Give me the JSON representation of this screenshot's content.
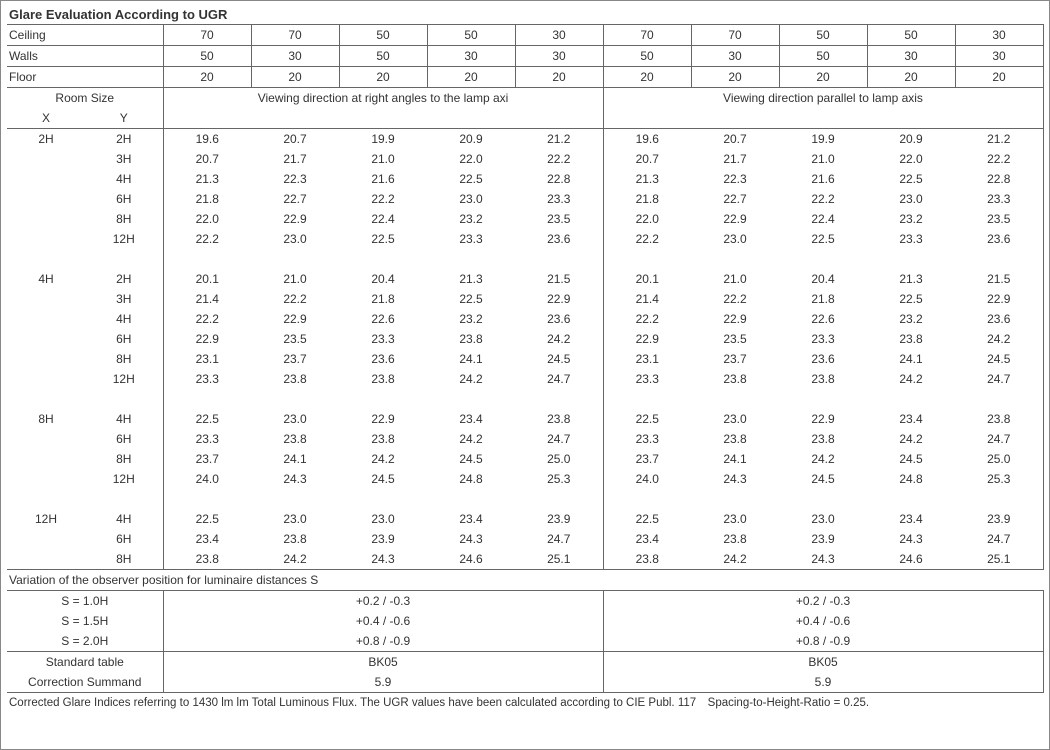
{
  "title": "Glare Evaluation According to UGR",
  "reflectance_rows": [
    {
      "label": "Ceiling",
      "vals": [
        "70",
        "70",
        "50",
        "50",
        "30",
        "70",
        "70",
        "50",
        "50",
        "30"
      ]
    },
    {
      "label": "Walls",
      "vals": [
        "50",
        "30",
        "50",
        "30",
        "30",
        "50",
        "30",
        "50",
        "30",
        "30"
      ]
    },
    {
      "label": "Floor",
      "vals": [
        "20",
        "20",
        "20",
        "20",
        "20",
        "20",
        "20",
        "20",
        "20",
        "20"
      ]
    }
  ],
  "room_size_label": "Room Size",
  "x_label": "X",
  "y_label": "Y",
  "view_left": "Viewing direction at right angles to the lamp axi",
  "view_right": "Viewing direction parallel to lamp axis",
  "groups": [
    {
      "x": "2H",
      "rows": [
        {
          "y": "2H",
          "v": [
            "19.6",
            "20.7",
            "19.9",
            "20.9",
            "21.2",
            "19.6",
            "20.7",
            "19.9",
            "20.9",
            "21.2"
          ]
        },
        {
          "y": "3H",
          "v": [
            "20.7",
            "21.7",
            "21.0",
            "22.0",
            "22.2",
            "20.7",
            "21.7",
            "21.0",
            "22.0",
            "22.2"
          ]
        },
        {
          "y": "4H",
          "v": [
            "21.3",
            "22.3",
            "21.6",
            "22.5",
            "22.8",
            "21.3",
            "22.3",
            "21.6",
            "22.5",
            "22.8"
          ]
        },
        {
          "y": "6H",
          "v": [
            "21.8",
            "22.7",
            "22.2",
            "23.0",
            "23.3",
            "21.8",
            "22.7",
            "22.2",
            "23.0",
            "23.3"
          ]
        },
        {
          "y": "8H",
          "v": [
            "22.0",
            "22.9",
            "22.4",
            "23.2",
            "23.5",
            "22.0",
            "22.9",
            "22.4",
            "23.2",
            "23.5"
          ]
        },
        {
          "y": "12H",
          "v": [
            "22.2",
            "23.0",
            "22.5",
            "23.3",
            "23.6",
            "22.2",
            "23.0",
            "22.5",
            "23.3",
            "23.6"
          ]
        }
      ]
    },
    {
      "x": "4H",
      "rows": [
        {
          "y": "2H",
          "v": [
            "20.1",
            "21.0",
            "20.4",
            "21.3",
            "21.5",
            "20.1",
            "21.0",
            "20.4",
            "21.3",
            "21.5"
          ]
        },
        {
          "y": "3H",
          "v": [
            "21.4",
            "22.2",
            "21.8",
            "22.5",
            "22.9",
            "21.4",
            "22.2",
            "21.8",
            "22.5",
            "22.9"
          ]
        },
        {
          "y": "4H",
          "v": [
            "22.2",
            "22.9",
            "22.6",
            "23.2",
            "23.6",
            "22.2",
            "22.9",
            "22.6",
            "23.2",
            "23.6"
          ]
        },
        {
          "y": "6H",
          "v": [
            "22.9",
            "23.5",
            "23.3",
            "23.8",
            "24.2",
            "22.9",
            "23.5",
            "23.3",
            "23.8",
            "24.2"
          ]
        },
        {
          "y": "8H",
          "v": [
            "23.1",
            "23.7",
            "23.6",
            "24.1",
            "24.5",
            "23.1",
            "23.7",
            "23.6",
            "24.1",
            "24.5"
          ]
        },
        {
          "y": "12H",
          "v": [
            "23.3",
            "23.8",
            "23.8",
            "24.2",
            "24.7",
            "23.3",
            "23.8",
            "23.8",
            "24.2",
            "24.7"
          ]
        }
      ]
    },
    {
      "x": "8H",
      "rows": [
        {
          "y": "4H",
          "v": [
            "22.5",
            "23.0",
            "22.9",
            "23.4",
            "23.8",
            "22.5",
            "23.0",
            "22.9",
            "23.4",
            "23.8"
          ]
        },
        {
          "y": "6H",
          "v": [
            "23.3",
            "23.8",
            "23.8",
            "24.2",
            "24.7",
            "23.3",
            "23.8",
            "23.8",
            "24.2",
            "24.7"
          ]
        },
        {
          "y": "8H",
          "v": [
            "23.7",
            "24.1",
            "24.2",
            "24.5",
            "25.0",
            "23.7",
            "24.1",
            "24.2",
            "24.5",
            "25.0"
          ]
        },
        {
          "y": "12H",
          "v": [
            "24.0",
            "24.3",
            "24.5",
            "24.8",
            "25.3",
            "24.0",
            "24.3",
            "24.5",
            "24.8",
            "25.3"
          ]
        }
      ]
    },
    {
      "x": "12H",
      "rows": [
        {
          "y": "4H",
          "v": [
            "22.5",
            "23.0",
            "23.0",
            "23.4",
            "23.9",
            "22.5",
            "23.0",
            "23.0",
            "23.4",
            "23.9"
          ]
        },
        {
          "y": "6H",
          "v": [
            "23.4",
            "23.8",
            "23.9",
            "24.3",
            "24.7",
            "23.4",
            "23.8",
            "23.9",
            "24.3",
            "24.7"
          ]
        },
        {
          "y": "8H",
          "v": [
            "23.8",
            "24.2",
            "24.3",
            "24.6",
            "25.1",
            "23.8",
            "24.2",
            "24.3",
            "24.6",
            "25.1"
          ]
        }
      ]
    }
  ],
  "variation_header": "Variation of the observer position for luminaire distances S",
  "variation_rows": [
    {
      "label": "S = 1.0H",
      "left": "+0.2 / -0.3",
      "right": "+0.2 / -0.3"
    },
    {
      "label": "S = 1.5H",
      "left": "+0.4 / -0.6",
      "right": "+0.4 / -0.6"
    },
    {
      "label": "S = 2.0H",
      "left": "+0.8 / -0.9",
      "right": "+0.8 / -0.9"
    }
  ],
  "std_table_label": "Standard table",
  "std_table_left": "BK05",
  "std_table_right": "BK05",
  "corr_label": "Correction Summand",
  "corr_left": "5.9",
  "corr_right": "5.9",
  "footnote": "Corrected Glare Indices referring to 1430 lm lm Total Luminous Flux. The UGR values have been calculated according to CIE Publ. 117 Spacing-to-Height-Ratio = 0.25."
}
